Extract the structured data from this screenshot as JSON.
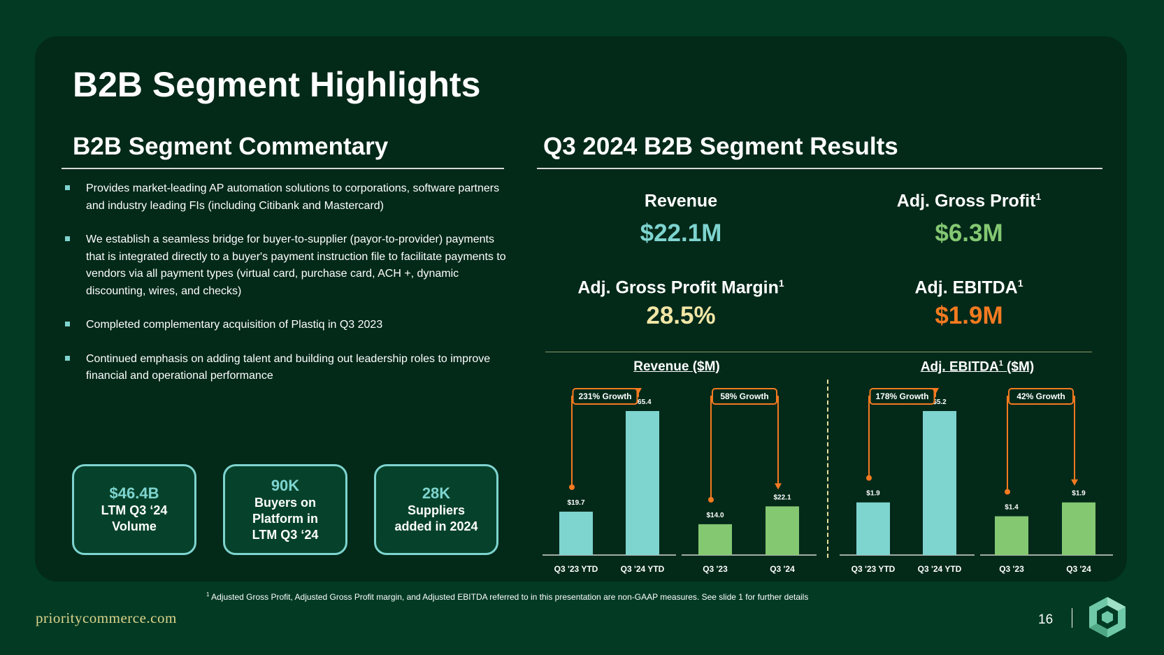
{
  "slide": {
    "title": "B2B Segment Highlights",
    "page_number": "16",
    "brand_url": "prioritycommerce.com",
    "footnote_mark": "1",
    "footnote": "Adjusted Gross Profit, Adjusted Gross Profit margin, and Adjusted EBITDA referred to in this presentation are non-GAAP measures. See slide 1 for further details"
  },
  "commentary": {
    "heading": "B2B Segment Commentary",
    "bullets": [
      "Provides market-leading AP automation solutions to corporations, software partners and industry leading FIs (including Citibank and Mastercard)",
      "We establish a seamless bridge for buyer-to-supplier (payor-to-provider) payments that is integrated directly to a buyer's payment instruction file to facilitate payments to vendors via all payment types (virtual card, purchase card, ACH +, dynamic discounting, wires, and checks)",
      "Completed complementary acquisition of Plastiq in Q3 2023",
      "Continued emphasis on adding talent and building out leadership roles to improve financial and operational performance"
    ],
    "stats": [
      {
        "value": "$46.4B",
        "label": "LTM Q3 ‘24\nVolume"
      },
      {
        "value": "90K",
        "label": "Buyers on\nPlatform in\nLTM Q3 ‘24"
      },
      {
        "value": "28K",
        "label": "Suppliers\nadded in 2024"
      }
    ]
  },
  "results": {
    "heading": "Q3 2024 B2B Segment Results",
    "metrics": [
      {
        "label": "Revenue",
        "sup": "",
        "value": "$22.1M",
        "color": "#7ed4cf"
      },
      {
        "label": "Adj. Gross Profit",
        "sup": "1",
        "value": "$6.3M",
        "color": "#84c872"
      },
      {
        "label": "Adj. Gross Profit Margin",
        "sup": "1",
        "value": "28.5%",
        "color": "#f1e6a6"
      },
      {
        "label": "Adj. EBITDA",
        "sup": "1",
        "value": "$1.9M",
        "color": "#f47a20"
      }
    ]
  },
  "colors": {
    "teal": "#7ed4cf",
    "green": "#84c872",
    "orange": "#f47a20"
  },
  "chart_data": [
    {
      "type": "bar",
      "title": "Revenue ($M)",
      "title_sup": "",
      "categories": [
        "Q3 '23 YTD",
        "Q3 '24 YTD",
        "Q3 '23",
        "Q3 '24"
      ],
      "values": [
        19.7,
        65.4,
        14.0,
        22.1
      ],
      "labels": [
        "$19.7",
        "$65.4",
        "$14.0",
        "$22.1"
      ],
      "bar_colors": [
        "#7ed4cf",
        "#7ed4cf",
        "#84c872",
        "#84c872"
      ],
      "groups": [
        {
          "from": 0,
          "to": 1,
          "label": "231% Growth"
        },
        {
          "from": 2,
          "to": 3,
          "label": "58% Growth"
        }
      ]
    },
    {
      "type": "bar",
      "title": "Adj. EBITDA",
      "title_sup": "1",
      "title_suffix": "($M)",
      "categories": [
        "Q3 '23 YTD",
        "Q3 '24 YTD",
        "Q3 '23",
        "Q3 '24"
      ],
      "values": [
        1.9,
        5.2,
        1.4,
        1.9
      ],
      "labels": [
        "$1.9",
        "$5.2",
        "$1.4",
        "$1.9"
      ],
      "bar_colors": [
        "#7ed4cf",
        "#7ed4cf",
        "#84c872",
        "#84c872"
      ],
      "groups": [
        {
          "from": 0,
          "to": 1,
          "label": "178% Growth"
        },
        {
          "from": 2,
          "to": 3,
          "label": "42% Growth"
        }
      ]
    }
  ]
}
